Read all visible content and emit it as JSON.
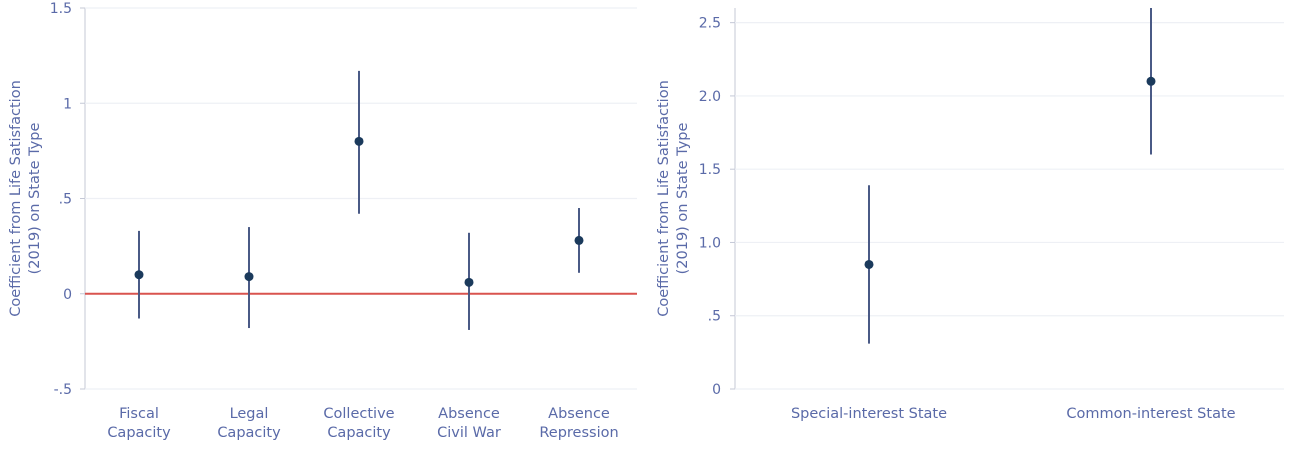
{
  "chart_data": [
    {
      "type": "scatter",
      "subtype": "coefficient-plot-with-confidence-intervals",
      "ylabel": [
        "Coefficient from Life Satisfaction",
        "(2019) on State Type"
      ],
      "ylim": [
        -0.5,
        1.5
      ],
      "yticks": [
        {
          "value": -0.5,
          "label": "-.5"
        },
        {
          "value": 0,
          "label": "0"
        },
        {
          "value": 0.5,
          "label": ".5"
        },
        {
          "value": 1,
          "label": "1"
        },
        {
          "value": 1.5,
          "label": "1.5"
        }
      ],
      "categories": [
        [
          "Fiscal",
          "Capacity"
        ],
        [
          "Legal",
          "Capacity"
        ],
        [
          "Collective",
          "Capacity"
        ],
        [
          "Absence",
          "Civil War"
        ],
        [
          "Absence",
          "Repression"
        ]
      ],
      "points": [
        {
          "estimate": 0.1,
          "lower": -0.13,
          "upper": 0.33
        },
        {
          "estimate": 0.09,
          "lower": -0.18,
          "upper": 0.35
        },
        {
          "estimate": 0.8,
          "lower": 0.42,
          "upper": 1.17
        },
        {
          "estimate": 0.06,
          "lower": -0.19,
          "upper": 0.32
        },
        {
          "estimate": 0.28,
          "lower": 0.11,
          "upper": 0.45
        }
      ],
      "reference_line": 0,
      "grid": true,
      "colors": {
        "point": "#1b3a5c",
        "ci": "#4a5a86",
        "reference": "#d9534f",
        "text": "#5a6aa8",
        "axis": "#c4c8d6"
      }
    },
    {
      "type": "scatter",
      "subtype": "coefficient-plot-with-confidence-intervals",
      "ylabel": [
        "Coefficient from Life Satisfaction",
        "(2019) on State Type"
      ],
      "ylim": [
        0,
        2.6
      ],
      "yticks": [
        {
          "value": 0,
          "label": "0"
        },
        {
          "value": 0.5,
          "label": ".5"
        },
        {
          "value": 1.0,
          "label": "1.0"
        },
        {
          "value": 1.5,
          "label": "1.5"
        },
        {
          "value": 2.0,
          "label": "2.0"
        },
        {
          "value": 2.5,
          "label": "2.5"
        }
      ],
      "categories": [
        [
          "Special-interest State"
        ],
        [
          "Common-interest State"
        ]
      ],
      "points": [
        {
          "estimate": 0.85,
          "lower": 0.31,
          "upper": 1.39
        },
        {
          "estimate": 2.1,
          "lower": 1.6,
          "upper": 2.6
        }
      ],
      "grid": true,
      "colors": {
        "point": "#1b3a5c",
        "ci": "#4a5a86",
        "text": "#5a6aa8",
        "axis": "#c4c8d6"
      }
    }
  ]
}
